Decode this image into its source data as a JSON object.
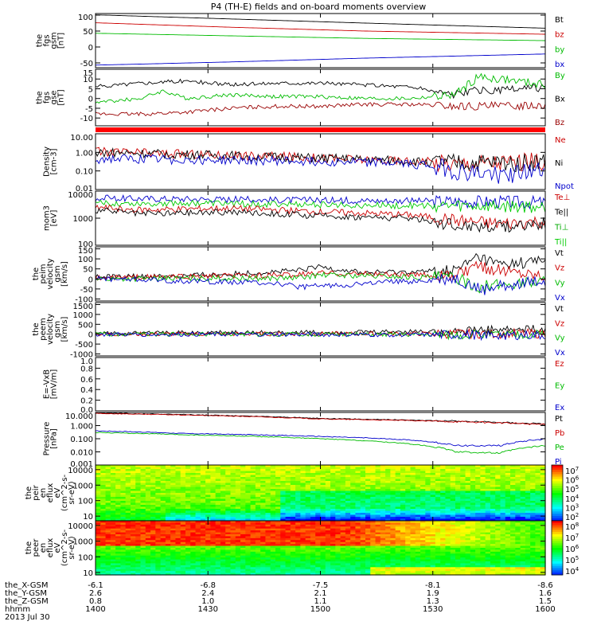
{
  "title": "P4 (TH-E) fields and on-board moments overview",
  "chart_data": {
    "type": "line",
    "x_axis": {
      "ticks": [
        "1400",
        "1430",
        "1500",
        "1530",
        "1600"
      ],
      "rows": [
        {
          "label": "the_X-GSM",
          "values": [
            "-6.1",
            "-6.8",
            "-7.5",
            "-8.1",
            "-8.6"
          ]
        },
        {
          "label": "the_Y-GSM",
          "values": [
            "2.6",
            "2.4",
            "2.1",
            "1.9",
            "1.6"
          ]
        },
        {
          "label": "the_Z-GSM",
          "values": [
            "0.8",
            "1.0",
            "1.1",
            "1.3",
            "1.5"
          ]
        },
        {
          "label": "hhmm",
          "values": [
            "1400",
            "1430",
            "1500",
            "1530",
            "1600"
          ]
        }
      ],
      "date": "2013 Jul 30"
    },
    "panels": [
      {
        "id": "fgs-gsm",
        "ylabel": [
          "the",
          "fgs",
          "gsm",
          "[nT]"
        ],
        "yscale": "linear",
        "ylim": [
          -65,
          105
        ],
        "yticks": [
          [
            "100",
            100
          ],
          [
            "50",
            50
          ],
          [
            "0",
            0
          ],
          [
            "-50",
            -50
          ]
        ],
        "legend": [
          {
            "name": "Bt",
            "color": "#000000"
          },
          {
            "name": "bz",
            "color": "#cc0000"
          },
          {
            "name": "by",
            "color": "#00bb00"
          },
          {
            "name": "bx",
            "color": "#0000cc"
          }
        ],
        "series": [
          {
            "name": "Bt",
            "color": "#000000",
            "x": [
              0,
              0.3,
              0.6,
              1.0
            ],
            "y": [
              101,
              88,
              75,
              59
            ]
          },
          {
            "name": "bz",
            "color": "#cc0000",
            "x": [
              0,
              0.3,
              0.6,
              1.0
            ],
            "y": [
              76,
              62,
              50,
              40
            ]
          },
          {
            "name": "by",
            "color": "#00bb00",
            "x": [
              0,
              0.3,
              0.6,
              1.0
            ],
            "y": [
              43,
              35,
              27,
              20
            ]
          },
          {
            "name": "bx",
            "color": "#0000cc",
            "x": [
              0,
              0.3,
              0.6,
              1.0
            ],
            "y": [
              -57,
              -47,
              -35,
              -22
            ]
          }
        ]
      },
      {
        "id": "fgs-gse",
        "ylabel": [
          "the",
          "fgs",
          "gse",
          "[nT]"
        ],
        "yscale": "linear",
        "ylim": [
          -14,
          15
        ],
        "yticks": [
          [
            "15",
            15
          ],
          [
            "10",
            10
          ],
          [
            "5",
            5
          ],
          [
            "0",
            0
          ],
          [
            "-5",
            -5
          ],
          [
            "-10",
            -10
          ]
        ],
        "legend": [
          {
            "name": "By",
            "color": "#00bb00"
          },
          {
            "name": "Bx",
            "color": "#000000"
          },
          {
            "name": "Bz",
            "color": "#990000"
          }
        ],
        "series": [
          {
            "name": "Bx",
            "color": "#000000",
            "x": [
              0,
              0.1,
              0.2,
              0.3,
              0.4,
              0.5,
              0.6,
              0.7,
              0.8,
              0.85,
              0.9,
              1.0
            ],
            "y": [
              6,
              8,
              9,
              7,
              8,
              8,
              7,
              6,
              2,
              4,
              4,
              6
            ]
          },
          {
            "name": "By",
            "color": "#00bb00",
            "x": [
              0,
              0.1,
              0.15,
              0.2,
              0.3,
              0.4,
              0.5,
              0.6,
              0.7,
              0.8,
              0.85,
              0.9,
              1.0
            ],
            "y": [
              -2,
              0,
              4,
              0,
              2,
              1,
              1,
              0,
              0,
              2,
              11,
              10,
              7
            ]
          },
          {
            "name": "Bz",
            "color": "#990000",
            "x": [
              0,
              0.1,
              0.2,
              0.3,
              0.4,
              0.5,
              0.6,
              0.7,
              0.8,
              0.9,
              1.0
            ],
            "y": [
              -8,
              -8,
              -7,
              -5,
              -4,
              -4,
              -3,
              -3,
              -4,
              -4,
              -3
            ]
          }
        ]
      },
      {
        "id": "density",
        "ylabel": [
          "Density",
          "[cm-3]"
        ],
        "yscale": "log",
        "ylim": [
          0.01,
          10
        ],
        "yticks": [
          [
            "10.00",
            10
          ],
          [
            "1.00",
            1
          ],
          [
            "0.10",
            0.1
          ],
          [
            "0.01",
            0.01
          ]
        ],
        "legend": [
          {
            "name": "Ne",
            "color": "#cc0000"
          },
          {
            "name": "Ni",
            "color": "#000000"
          },
          {
            "name": "Npot",
            "color": "#0000cc"
          }
        ],
        "series": [
          {
            "name": "Ne",
            "color": "#cc0000",
            "x": [
              0,
              0.2,
              0.4,
              0.6,
              0.75,
              0.8,
              0.9,
              1.0
            ],
            "y": [
              1.1,
              0.8,
              0.6,
              0.4,
              0.3,
              0.25,
              0.3,
              0.35
            ]
          },
          {
            "name": "Ni",
            "color": "#000000",
            "x": [
              0,
              0.2,
              0.4,
              0.6,
              0.8,
              1.0
            ],
            "y": [
              1.0,
              0.75,
              0.55,
              0.4,
              0.25,
              0.3
            ]
          },
          {
            "name": "Npot",
            "color": "#0000cc",
            "x": [
              0,
              0.2,
              0.4,
              0.6,
              0.75,
              0.8,
              0.9,
              1.0
            ],
            "y": [
              0.45,
              0.4,
              0.35,
              0.3,
              0.2,
              0.09,
              0.06,
              0.1
            ]
          }
        ]
      },
      {
        "id": "mom-energy",
        "ylabel": [
          "mom3",
          "[eV]"
        ],
        "yscale": "log",
        "ylim": [
          100,
          10000
        ],
        "yticks": [
          [
            "10000",
            10000
          ],
          [
            "1000",
            1000
          ],
          [
            "100",
            100
          ]
        ],
        "legend": [
          {
            "name": "Te⊥",
            "color": "#cc0000"
          },
          {
            "name": "Te||",
            "color": "#000000"
          },
          {
            "name": "Ti⊥",
            "color": "#00aa00"
          },
          {
            "name": "Ti||",
            "color": "#00cc00"
          }
        ],
        "series": [
          {
            "name": "Ti⊥",
            "color": "#0000cc",
            "x": [
              0,
              0.2,
              0.4,
              0.6,
              0.8,
              1.0
            ],
            "y": [
              5500,
              5200,
              4800,
              4500,
              4300,
              3900
            ]
          },
          {
            "name": "Ti||",
            "color": "#00cc00",
            "x": [
              0,
              0.2,
              0.4,
              0.6,
              0.8,
              1.0
            ],
            "y": [
              3500,
              3600,
              3300,
              3000,
              2800,
              2600
            ]
          },
          {
            "name": "Te⊥",
            "color": "#cc0000",
            "x": [
              0,
              0.1,
              0.3,
              0.5,
              0.7,
              0.8,
              0.9,
              1.0
            ],
            "y": [
              2500,
              2000,
              2300,
              1700,
              1300,
              800,
              600,
              750
            ]
          },
          {
            "name": "Te||",
            "color": "#000000",
            "x": [
              0,
              0.1,
              0.3,
              0.5,
              0.7,
              0.8,
              0.9,
              1.0
            ],
            "y": [
              2000,
              1400,
              1700,
              1200,
              1000,
              550,
              500,
              650
            ]
          }
        ]
      },
      {
        "id": "peim-velocity",
        "ylabel": [
          "the",
          "peim",
          "velocity",
          "gsm",
          "[km/s]"
        ],
        "yscale": "linear",
        "ylim": [
          -110,
          160
        ],
        "yticks": [
          [
            "150",
            150
          ],
          [
            "100",
            100
          ],
          [
            "50",
            50
          ],
          [
            "0",
            0
          ],
          [
            "-50",
            -50
          ],
          [
            "-100",
            -100
          ]
        ],
        "legend": [
          {
            "name": "Vt",
            "color": "#000000"
          },
          {
            "name": "Vz",
            "color": "#cc0000"
          },
          {
            "name": "Vy",
            "color": "#00bb00"
          },
          {
            "name": "Vx",
            "color": "#0000cc"
          }
        ],
        "series": [
          {
            "name": "Vt",
            "color": "#000000",
            "x": [
              0,
              0.2,
              0.45,
              0.5,
              0.6,
              0.8,
              0.85,
              0.9,
              1.0
            ],
            "y": [
              10,
              15,
              40,
              60,
              30,
              40,
              110,
              70,
              90
            ]
          },
          {
            "name": "Vz",
            "color": "#cc0000",
            "x": [
              0,
              0.45,
              0.5,
              0.8,
              0.85,
              1.0
            ],
            "y": [
              5,
              20,
              30,
              15,
              60,
              20
            ]
          },
          {
            "name": "Vy",
            "color": "#00bb00",
            "x": [
              0,
              0.45,
              0.5,
              0.8,
              0.85,
              1.0
            ],
            "y": [
              0,
              5,
              20,
              5,
              -40,
              -10
            ]
          },
          {
            "name": "Vx",
            "color": "#0000cc",
            "x": [
              0,
              0.4,
              0.45,
              0.8,
              0.86,
              0.9,
              1.0
            ],
            "y": [
              0,
              -20,
              -40,
              0,
              -60,
              -30,
              -10
            ]
          }
        ]
      },
      {
        "id": "peem-velocity",
        "ylabel": [
          "the",
          "peem",
          "velocity",
          "gsm",
          "[km/s]"
        ],
        "yscale": "linear",
        "ylim": [
          -1100,
          1600
        ],
        "yticks": [
          [
            "1500",
            1500
          ],
          [
            "1000",
            1000
          ],
          [
            "500",
            500
          ],
          [
            "0",
            0
          ],
          [
            "-500",
            -500
          ],
          [
            "-1000",
            -1000
          ]
        ],
        "legend": [
          {
            "name": "Vt",
            "color": "#000000"
          },
          {
            "name": "Vz",
            "color": "#cc0000"
          },
          {
            "name": "Vy",
            "color": "#00bb00"
          },
          {
            "name": "Vx",
            "color": "#0000cc"
          }
        ],
        "series": [
          {
            "name": "Vt",
            "color": "#000000",
            "x": [
              0,
              0.3,
              0.6,
              0.9,
              1.0
            ],
            "y": [
              50,
              80,
              100,
              200,
              250
            ]
          },
          {
            "name": "Vz",
            "color": "#cc0000",
            "x": [
              0,
              0.5,
              1.0
            ],
            "y": [
              0,
              20,
              30
            ]
          },
          {
            "name": "Vy",
            "color": "#00bb00",
            "x": [
              0,
              0.5,
              1.0
            ],
            "y": [
              0,
              -10,
              -20
            ]
          },
          {
            "name": "Vx",
            "color": "#0000cc",
            "x": [
              0,
              0.5,
              1.0
            ],
            "y": [
              0,
              -20,
              -50
            ]
          }
        ]
      },
      {
        "id": "efield",
        "ylabel": [
          "E=-VxB",
          "[mV/m]"
        ],
        "yscale": "linear",
        "ylim": [
          0,
          1.0
        ],
        "yticks": [
          [
            "1.0",
            1.0
          ],
          [
            "0.8",
            0.8
          ],
          [
            "0.6",
            0.6
          ],
          [
            "0.4",
            0.4
          ],
          [
            "0.2",
            0.2
          ],
          [
            "0.0",
            0.0
          ]
        ],
        "legend": [
          {
            "name": "Ez",
            "color": "#cc0000"
          },
          {
            "name": "Ey",
            "color": "#00bb00"
          },
          {
            "name": "Ex",
            "color": "#0000cc"
          }
        ],
        "series": []
      },
      {
        "id": "pressure",
        "ylabel": [
          "Pressure",
          "[nPa]"
        ],
        "yscale": "log",
        "ylim": [
          0.001,
          10
        ],
        "yticks": [
          [
            "10.000",
            10
          ],
          [
            "1.000",
            1
          ],
          [
            "0.100",
            0.1
          ],
          [
            "0.010",
            0.01
          ],
          [
            "0.001",
            0.001
          ]
        ],
        "legend": [
          {
            "name": "Pt",
            "color": "#000000"
          },
          {
            "name": "Pb",
            "color": "#cc0000"
          },
          {
            "name": "Pe",
            "color": "#00bb00"
          },
          {
            "name": "Pi",
            "color": "#0000cc"
          }
        ],
        "series": [
          {
            "name": "Pt",
            "color": "#000000",
            "x": [
              0,
              0.5,
              1.0
            ],
            "y": [
              9,
              3.5,
              1.3
            ]
          },
          {
            "name": "Pb",
            "color": "#cc0000",
            "x": [
              0,
              0.5,
              1.0
            ],
            "y": [
              8.5,
              3.2,
              1.2
            ]
          },
          {
            "name": "Pi",
            "color": "#0000cc",
            "x": [
              0,
              0.2,
              0.5,
              0.7,
              0.8,
              0.9,
              1.0
            ],
            "y": [
              0.4,
              0.25,
              0.15,
              0.08,
              0.03,
              0.03,
              0.1
            ]
          },
          {
            "name": "Pe",
            "color": "#00bb00",
            "x": [
              0,
              0.2,
              0.5,
              0.7,
              0.8,
              0.9,
              1.0
            ],
            "y": [
              0.3,
              0.2,
              0.1,
              0.04,
              0.01,
              0.008,
              0.03
            ]
          }
        ]
      },
      {
        "id": "peir-spec",
        "type": "heatmap",
        "ylabel": [
          "the",
          "peir",
          "en",
          "eflux",
          "eV",
          "(cm^2-s-",
          "sr-eV)"
        ],
        "yscale": "log",
        "ylim": [
          5,
          20000
        ],
        "yticks": [
          [
            "10000",
            10000
          ],
          [
            "1000",
            1000
          ],
          [
            "100",
            100
          ],
          [
            "10",
            10
          ]
        ],
        "colorbar": {
          "scale": "log",
          "ticks": [
            "10^7",
            "10^6",
            "10^5",
            "10^4",
            "10^3",
            "10^2"
          ]
        }
      },
      {
        "id": "peer-spec",
        "type": "heatmap",
        "ylabel": [
          "the",
          "peer",
          "en",
          "eflux",
          "eV",
          "(cm^2-s-",
          "sr-eV)"
        ],
        "yscale": "log",
        "ylim": [
          7,
          20000
        ],
        "yticks": [
          [
            "10000",
            10000
          ],
          [
            "1000",
            1000
          ],
          [
            "100",
            100
          ],
          [
            "10",
            10
          ]
        ],
        "colorbar": {
          "scale": "log",
          "ticks": [
            "10^8",
            "10^7",
            "10^6",
            "10^5",
            "10^4"
          ]
        }
      }
    ]
  }
}
